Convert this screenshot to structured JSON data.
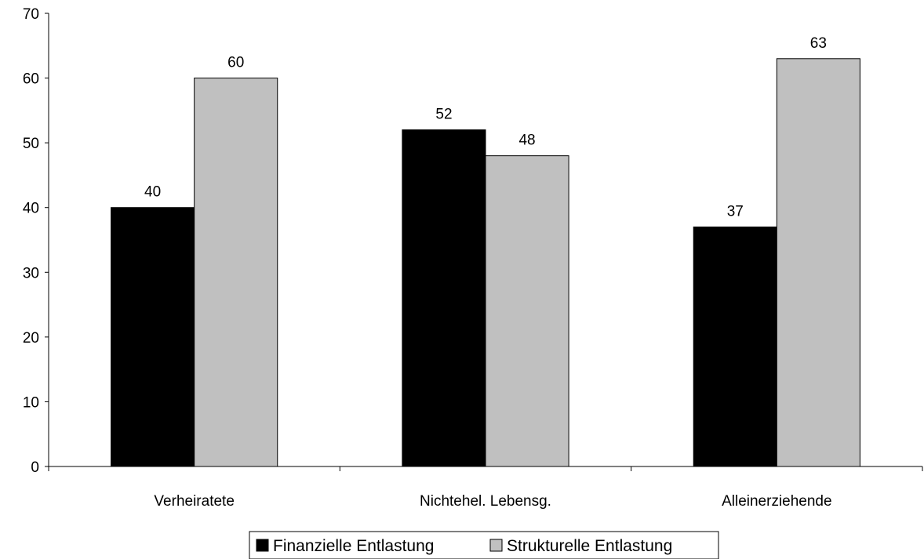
{
  "chart_data": {
    "type": "bar",
    "categories": [
      "Verheiratete",
      "Nichtehel. Lebensg.",
      "Alleinerziehende"
    ],
    "series": [
      {
        "name": "Finanzielle Entlastung",
        "values": [
          40,
          52,
          37
        ],
        "color": "#000000"
      },
      {
        "name": "Strukturelle Entlastung",
        "values": [
          60,
          48,
          63
        ],
        "color": "#c0c0c0"
      }
    ],
    "ylim": [
      0,
      70
    ],
    "yticks": [
      0,
      10,
      20,
      30,
      40,
      50,
      60,
      70
    ],
    "grid": false,
    "legend_position": "bottom",
    "data_labels": true
  }
}
